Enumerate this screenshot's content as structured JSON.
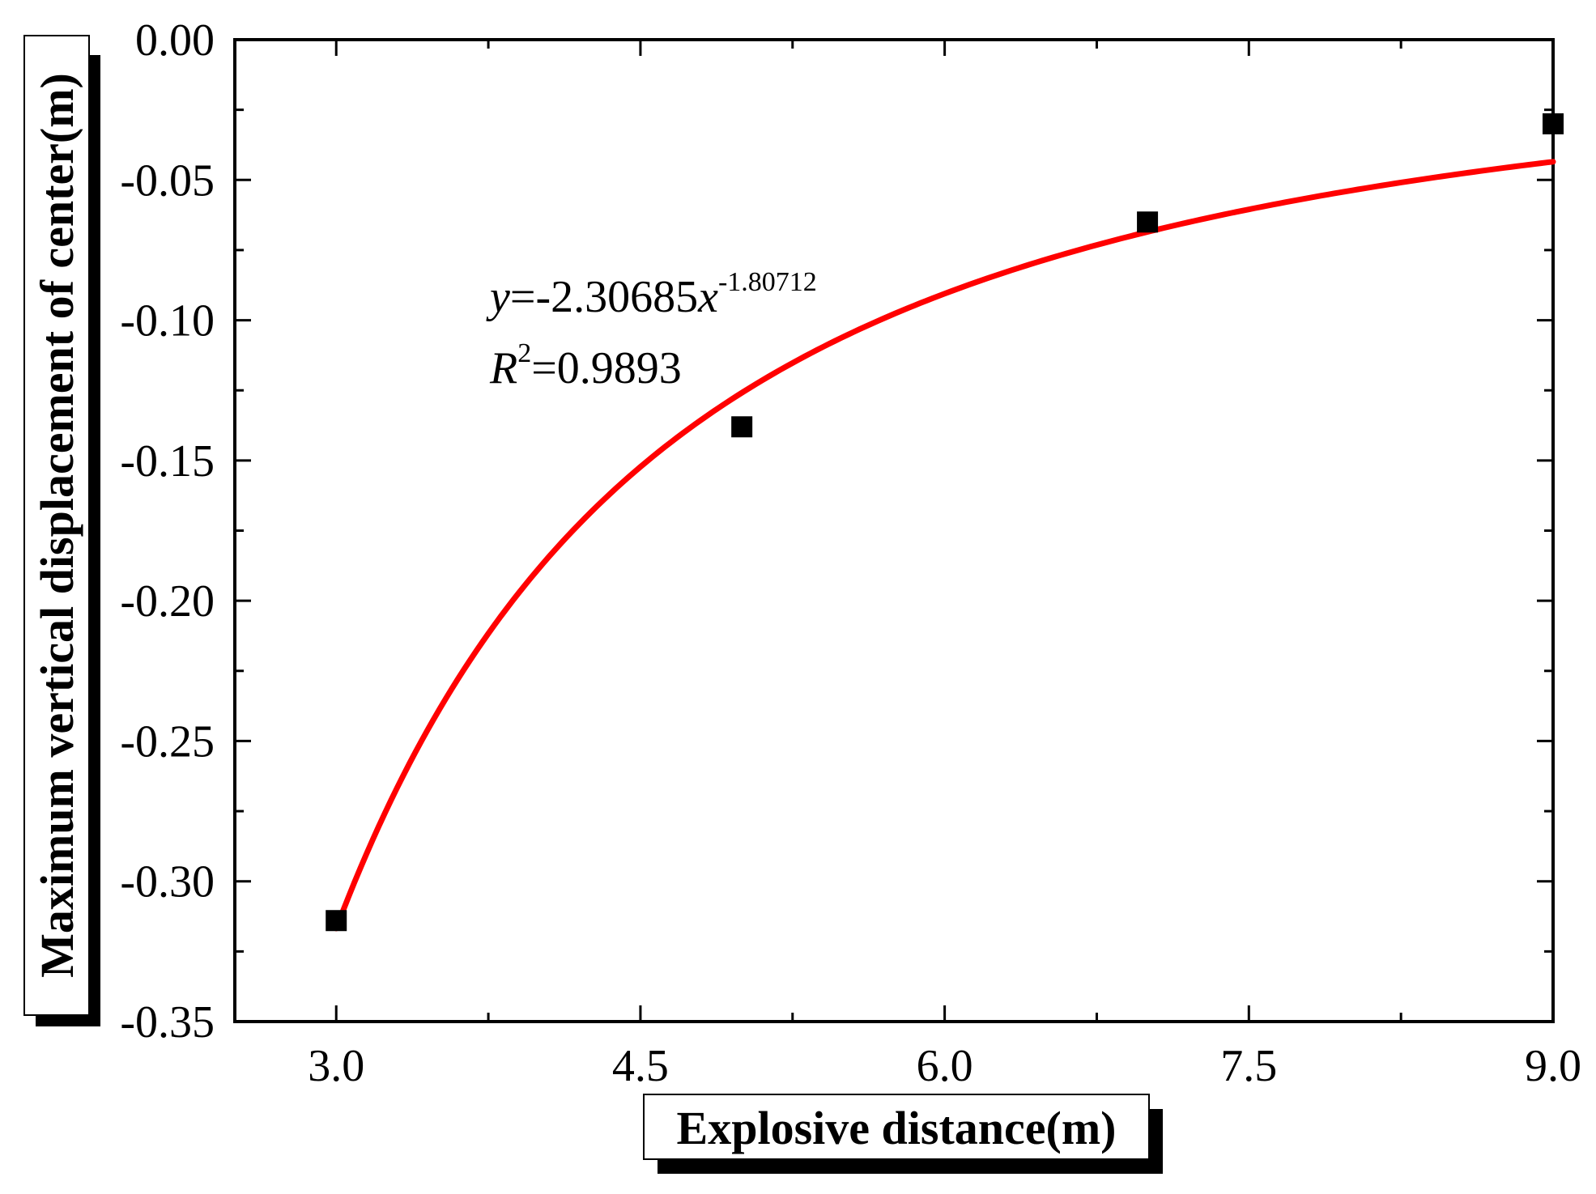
{
  "chart_data": {
    "type": "scatter",
    "title": "",
    "xlabel": "Explosive distance(m)",
    "ylabel": "Maximum vertical displacement of center(m)",
    "xlim": [
      2.5,
      9.0
    ],
    "ylim": [
      -0.35,
      0.0
    ],
    "x_ticks": [
      "3.0",
      "4.5",
      "6.0",
      "7.5",
      "9.0"
    ],
    "x_tick_values": [
      3.0,
      4.5,
      6.0,
      7.5,
      9.0
    ],
    "y_ticks": [
      "0.00",
      "-0.05",
      "-0.10",
      "-0.15",
      "-0.20",
      "-0.25",
      "-0.30",
      "-0.35"
    ],
    "y_tick_values": [
      0.0,
      -0.05,
      -0.1,
      -0.15,
      -0.2,
      -0.25,
      -0.3,
      -0.35
    ],
    "grid": false,
    "series": [
      {
        "type": "scatter",
        "marker": "square",
        "color": "#000000",
        "x": [
          3,
          5,
          7,
          9
        ],
        "y": [
          -0.314,
          -0.138,
          -0.065,
          -0.03
        ]
      },
      {
        "type": "fit-line",
        "color": "#ff0000",
        "coefficient": -2.30685,
        "exponent": -1.80712,
        "x_range": [
          3.0,
          9.0
        ]
      }
    ],
    "annotations": {
      "eq_prefix": "y",
      "eq_mid": "=-2.30685",
      "eq_var": "x",
      "eq_exp": "-1.80712",
      "r2_prefix": "R",
      "r2_sup": "2",
      "r2_value": "=0.9893"
    }
  }
}
